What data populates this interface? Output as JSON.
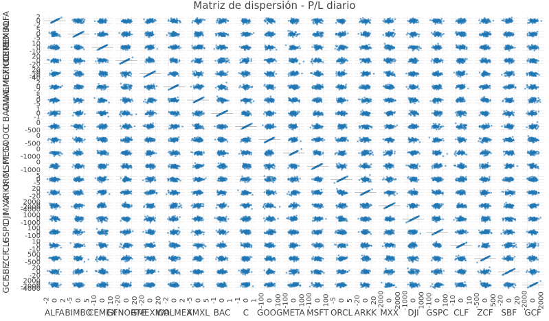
{
  "chart_data": {
    "type": "scatter",
    "subtype": "scatter_matrix",
    "title": "Matriz de dispersión - P/L diario",
    "variables": [
      "ALFA",
      "BIMBO",
      "CEMEX",
      "GFNORTE",
      "GMEXICO",
      "WALMEX",
      "AMXL",
      "BAC",
      "C",
      "GOOG",
      "META",
      "MSFT",
      "ORCL",
      "ARKK",
      "MXX",
      "DJI",
      "GSPC",
      "CLF",
      "ZCF",
      "SBF",
      "GCF"
    ],
    "x_tick_labels": [
      [
        "-2",
        "0",
        "2"
      ],
      [
        "-5",
        "0",
        "5"
      ],
      [
        "-10",
        "0",
        "10"
      ],
      [
        "-20",
        "0",
        "20"
      ],
      [
        "-20",
        "0",
        "20"
      ],
      [
        "-2",
        "0",
        "2"
      ],
      [
        "-5",
        "0",
        "5"
      ],
      [
        "-1",
        "0",
        "1"
      ],
      [
        "-1",
        "0",
        "1"
      ],
      [
        "-100",
        "0",
        "100"
      ],
      [
        "-100",
        "0",
        "100"
      ],
      [
        "-100",
        "0",
        "100"
      ],
      [
        "-5",
        "0",
        "5"
      ],
      [
        "-20",
        "0",
        "20"
      ],
      [
        "-2000",
        "0",
        "2000"
      ],
      [
        "-1000",
        "0",
        "1000"
      ],
      [
        "-100",
        "0",
        "100"
      ],
      [
        "-10",
        "0",
        "10"
      ],
      [
        "-500",
        "0",
        "500"
      ],
      [
        "-20",
        "0",
        "20"
      ],
      [
        "-2000",
        "0",
        "2000"
      ]
    ],
    "y_tick_labels": [
      [
        "-2",
        "0",
        "2"
      ],
      [
        "-5",
        "0",
        "5"
      ],
      [
        "-10",
        "0",
        "10"
      ],
      [
        "-20",
        "0",
        "20"
      ],
      [
        "-40",
        "-20",
        "0",
        "20"
      ],
      [
        "-2",
        "0",
        "2"
      ],
      [
        "-5",
        "0",
        "5"
      ],
      [
        "-1",
        "0",
        "1"
      ],
      [
        "-500",
        "0"
      ],
      [
        "-500",
        "0"
      ],
      [
        "-1000",
        "0"
      ],
      [
        "-1000",
        "0"
      ],
      [
        "-5",
        "0",
        "5"
      ],
      [
        "-20",
        "0",
        "20"
      ],
      [
        "-4000",
        "-2000",
        "0",
        "2000"
      ],
      [
        "-1000",
        "0",
        "1000"
      ],
      [
        "-100",
        "0",
        "100"
      ],
      [
        "-10",
        "0",
        "10"
      ],
      [
        "-500",
        "0",
        "500"
      ],
      [
        "-20",
        "0",
        "20"
      ],
      [
        "-4000",
        "-2000",
        "0",
        "2000"
      ]
    ],
    "axis_range": [
      -4,
      4
    ],
    "points_per_cell": 70,
    "diagonal": "perfect correlation (x = y)",
    "grid": true,
    "legend": "none",
    "colors": {
      "marker": "#1f77b4",
      "grid": "#e5e5e5",
      "axis_line": "#444444",
      "background": "#ffffff"
    }
  }
}
